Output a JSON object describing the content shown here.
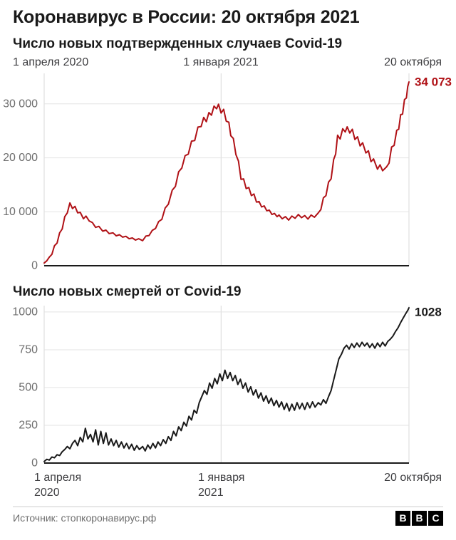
{
  "page": {
    "title": "Коронавирус в России: 20 октября 2021",
    "source": "Источник: стопкоронавирус.рф",
    "logo_letters": [
      "B",
      "B",
      "C"
    ]
  },
  "chart_data": [
    {
      "id": "cases",
      "type": "line",
      "title": "Число новых подтвержденных случаев Covid-19",
      "color": "#b01116",
      "end_label": "34 073",
      "end_value": 34073,
      "grid": true,
      "legend": "none",
      "x_axis": {
        "unit": "days_since_2020_04_01",
        "range": [
          0,
          567
        ],
        "gridline_days": [
          0,
          275,
          567
        ],
        "labels": [
          "1 апреля 2020",
          "1 января 2021",
          "20 октября"
        ],
        "label_position": "top"
      },
      "y_axis": {
        "ticks": [
          0,
          10000,
          20000,
          30000
        ],
        "tick_labels": [
          "0",
          "10 000",
          "20 000",
          "30 000"
        ],
        "max_value": 34073
      },
      "points": [
        [
          0,
          500
        ],
        [
          4,
          900
        ],
        [
          8,
          1600
        ],
        [
          12,
          2100
        ],
        [
          16,
          3700
        ],
        [
          20,
          4200
        ],
        [
          24,
          6100
        ],
        [
          28,
          6800
        ],
        [
          32,
          9100
        ],
        [
          36,
          9800
        ],
        [
          40,
          11650
        ],
        [
          44,
          10600
        ],
        [
          48,
          11000
        ],
        [
          52,
          9800
        ],
        [
          56,
          9900
        ],
        [
          61,
          8700
        ],
        [
          65,
          9200
        ],
        [
          70,
          8300
        ],
        [
          75,
          8000
        ],
        [
          80,
          7100
        ],
        [
          85,
          7300
        ],
        [
          91,
          6400
        ],
        [
          96,
          6600
        ],
        [
          101,
          5950
        ],
        [
          107,
          6100
        ],
        [
          112,
          5550
        ],
        [
          117,
          5750
        ],
        [
          122,
          5300
        ],
        [
          127,
          5450
        ],
        [
          132,
          5000
        ],
        [
          137,
          5150
        ],
        [
          142,
          4750
        ],
        [
          147,
          5000
        ],
        [
          153,
          4650
        ],
        [
          158,
          5500
        ],
        [
          163,
          5600
        ],
        [
          168,
          6550
        ],
        [
          173,
          6900
        ],
        [
          178,
          8200
        ],
        [
          183,
          8600
        ],
        [
          188,
          10700
        ],
        [
          193,
          11400
        ],
        [
          199,
          14000
        ],
        [
          204,
          14700
        ],
        [
          209,
          17400
        ],
        [
          214,
          18100
        ],
        [
          219,
          20400
        ],
        [
          224,
          20700
        ],
        [
          229,
          23100
        ],
        [
          234,
          23200
        ],
        [
          239,
          25700
        ],
        [
          244,
          25800
        ],
        [
          248,
          27500
        ],
        [
          252,
          26700
        ],
        [
          256,
          28400
        ],
        [
          260,
          27900
        ],
        [
          264,
          29600
        ],
        [
          268,
          29100
        ],
        [
          271,
          29935
        ],
        [
          275,
          28300
        ],
        [
          279,
          29000
        ],
        [
          283,
          26800
        ],
        [
          287,
          26600
        ],
        [
          290,
          24100
        ],
        [
          294,
          23600
        ],
        [
          298,
          20600
        ],
        [
          302,
          19400
        ],
        [
          306,
          16000
        ],
        [
          310,
          16100
        ],
        [
          314,
          14300
        ],
        [
          318,
          14500
        ],
        [
          322,
          13000
        ],
        [
          326,
          13300
        ],
        [
          330,
          11800
        ],
        [
          334,
          11900
        ],
        [
          338,
          10900
        ],
        [
          342,
          11100
        ],
        [
          346,
          10200
        ],
        [
          350,
          10300
        ],
        [
          354,
          9500
        ],
        [
          358,
          9700
        ],
        [
          362,
          9100
        ],
        [
          365,
          9400
        ],
        [
          370,
          8700
        ],
        [
          375,
          9100
        ],
        [
          380,
          8450
        ],
        [
          385,
          9200
        ],
        [
          390,
          8800
        ],
        [
          395,
          9500
        ],
        [
          400,
          8900
        ],
        [
          405,
          9300
        ],
        [
          410,
          8650
        ],
        [
          415,
          9400
        ],
        [
          420,
          9000
        ],
        [
          426,
          9800
        ],
        [
          430,
          10400
        ],
        [
          434,
          12600
        ],
        [
          438,
          13000
        ],
        [
          442,
          15500
        ],
        [
          446,
          16100
        ],
        [
          450,
          19700
        ],
        [
          453,
          20700
        ],
        [
          456,
          24200
        ],
        [
          460,
          23500
        ],
        [
          464,
          25400
        ],
        [
          468,
          24800
        ],
        [
          471,
          25750
        ],
        [
          475,
          24600
        ],
        [
          479,
          25300
        ],
        [
          483,
          23400
        ],
        [
          487,
          23900
        ],
        [
          491,
          22200
        ],
        [
          495,
          22800
        ],
        [
          500,
          20900
        ],
        [
          504,
          21300
        ],
        [
          508,
          19300
        ],
        [
          512,
          19800
        ],
        [
          518,
          17900
        ],
        [
          522,
          18700
        ],
        [
          526,
          17600
        ],
        [
          532,
          18300
        ],
        [
          536,
          19000
        ],
        [
          540,
          22000
        ],
        [
          544,
          22300
        ],
        [
          548,
          25100
        ],
        [
          551,
          25300
        ],
        [
          554,
          28000
        ],
        [
          557,
          28100
        ],
        [
          560,
          30800
        ],
        [
          563,
          31100
        ],
        [
          565,
          33200
        ],
        [
          567,
          34073
        ]
      ]
    },
    {
      "id": "deaths",
      "type": "line",
      "title": "Число новых смертей от Covid-19",
      "color": "#1a1a1a",
      "end_label": "1028",
      "end_value": 1028,
      "grid": true,
      "legend": "none",
      "x_axis": {
        "unit": "days_since_2020_04_01",
        "range": [
          0,
          567
        ],
        "gridline_days": [
          0,
          275,
          567
        ],
        "labels": [
          "1 апреля\n2020",
          "1 января\n2021",
          "20 октября"
        ],
        "label_position": "bottom"
      },
      "y_axis": {
        "ticks": [
          0,
          250,
          500,
          750,
          1000
        ],
        "tick_labels": [
          "0",
          "250",
          "500",
          "750",
          "1000"
        ],
        "max_value": 1028
      },
      "points": [
        [
          0,
          10
        ],
        [
          4,
          25
        ],
        [
          8,
          20
        ],
        [
          12,
          40
        ],
        [
          16,
          35
        ],
        [
          20,
          55
        ],
        [
          24,
          50
        ],
        [
          28,
          75
        ],
        [
          32,
          90
        ],
        [
          36,
          110
        ],
        [
          40,
          95
        ],
        [
          44,
          130
        ],
        [
          48,
          150
        ],
        [
          52,
          115
        ],
        [
          56,
          170
        ],
        [
          60,
          140
        ],
        [
          64,
          230
        ],
        [
          68,
          160
        ],
        [
          72,
          190
        ],
        [
          76,
          140
        ],
        [
          80,
          220
        ],
        [
          84,
          120
        ],
        [
          88,
          210
        ],
        [
          92,
          130
        ],
        [
          96,
          200
        ],
        [
          100,
          120
        ],
        [
          104,
          160
        ],
        [
          108,
          115
        ],
        [
          112,
          150
        ],
        [
          116,
          105
        ],
        [
          120,
          140
        ],
        [
          124,
          100
        ],
        [
          128,
          130
        ],
        [
          132,
          95
        ],
        [
          136,
          125
        ],
        [
          140,
          85
        ],
        [
          144,
          115
        ],
        [
          148,
          90
        ],
        [
          153,
          110
        ],
        [
          157,
          80
        ],
        [
          161,
          120
        ],
        [
          165,
          95
        ],
        [
          169,
          130
        ],
        [
          173,
          100
        ],
        [
          177,
          140
        ],
        [
          181,
          115
        ],
        [
          185,
          155
        ],
        [
          189,
          130
        ],
        [
          193,
          175
        ],
        [
          197,
          150
        ],
        [
          201,
          210
        ],
        [
          205,
          180
        ],
        [
          209,
          240
        ],
        [
          213,
          215
        ],
        [
          217,
          270
        ],
        [
          221,
          245
        ],
        [
          225,
          310
        ],
        [
          229,
          285
        ],
        [
          233,
          350
        ],
        [
          237,
          330
        ],
        [
          241,
          400
        ],
        [
          245,
          440
        ],
        [
          249,
          480
        ],
        [
          253,
          455
        ],
        [
          257,
          530
        ],
        [
          261,
          495
        ],
        [
          265,
          560
        ],
        [
          269,
          525
        ],
        [
          273,
          590
        ],
        [
          277,
          545
        ],
        [
          281,
          615
        ],
        [
          285,
          560
        ],
        [
          289,
          600
        ],
        [
          293,
          545
        ],
        [
          297,
          580
        ],
        [
          301,
          520
        ],
        [
          305,
          555
        ],
        [
          309,
          495
        ],
        [
          313,
          530
        ],
        [
          317,
          470
        ],
        [
          321,
          505
        ],
        [
          325,
          450
        ],
        [
          329,
          485
        ],
        [
          333,
          430
        ],
        [
          337,
          465
        ],
        [
          341,
          410
        ],
        [
          345,
          445
        ],
        [
          349,
          395
        ],
        [
          353,
          430
        ],
        [
          357,
          380
        ],
        [
          361,
          415
        ],
        [
          365,
          370
        ],
        [
          369,
          405
        ],
        [
          373,
          355
        ],
        [
          377,
          395
        ],
        [
          381,
          345
        ],
        [
          385,
          390
        ],
        [
          389,
          350
        ],
        [
          393,
          400
        ],
        [
          397,
          360
        ],
        [
          401,
          395
        ],
        [
          405,
          355
        ],
        [
          409,
          400
        ],
        [
          413,
          365
        ],
        [
          417,
          405
        ],
        [
          421,
          370
        ],
        [
          426,
          400
        ],
        [
          430,
          385
        ],
        [
          434,
          420
        ],
        [
          438,
          395
        ],
        [
          442,
          440
        ],
        [
          446,
          480
        ],
        [
          450,
          550
        ],
        [
          454,
          620
        ],
        [
          458,
          690
        ],
        [
          462,
          720
        ],
        [
          466,
          760
        ],
        [
          470,
          780
        ],
        [
          474,
          755
        ],
        [
          478,
          790
        ],
        [
          482,
          765
        ],
        [
          486,
          795
        ],
        [
          490,
          770
        ],
        [
          494,
          800
        ],
        [
          498,
          775
        ],
        [
          502,
          795
        ],
        [
          506,
          765
        ],
        [
          510,
          790
        ],
        [
          514,
          760
        ],
        [
          518,
          795
        ],
        [
          522,
          770
        ],
        [
          526,
          800
        ],
        [
          530,
          775
        ],
        [
          534,
          805
        ],
        [
          538,
          820
        ],
        [
          542,
          840
        ],
        [
          546,
          870
        ],
        [
          550,
          895
        ],
        [
          554,
          930
        ],
        [
          558,
          960
        ],
        [
          562,
          990
        ],
        [
          565,
          1010
        ],
        [
          567,
          1028
        ]
      ]
    }
  ]
}
